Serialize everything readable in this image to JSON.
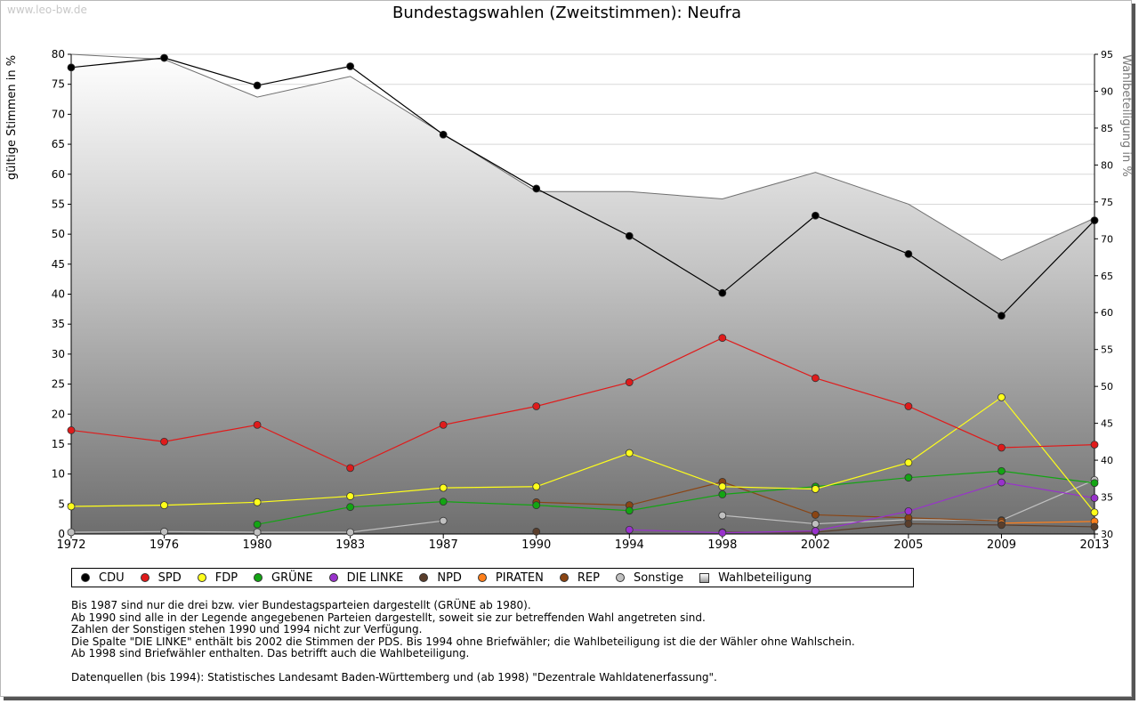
{
  "watermark": "www.leo-bw.de",
  "chart_data": {
    "type": "line",
    "title": "Bundestagswahlen (Zweitstimmen): Neufra",
    "ylabel": "gültige Stimmen in %",
    "y2label": "Wahlbeteiligung in %",
    "ylim": [
      0,
      80
    ],
    "y2lim": [
      30,
      95
    ],
    "yticks": [
      "0",
      "5",
      "10",
      "15",
      "20",
      "25",
      "30",
      "35",
      "40",
      "45",
      "50",
      "55",
      "60",
      "65",
      "70",
      "75",
      "80"
    ],
    "y2ticks": [
      "30",
      "35",
      "40",
      "45",
      "50",
      "55",
      "60",
      "65",
      "70",
      "75",
      "80",
      "85",
      "90",
      "95"
    ],
    "x": [
      "1972",
      "1976",
      "1980",
      "1983",
      "1987",
      "1990",
      "1994",
      "1998",
      "2002",
      "2005",
      "2009",
      "2013"
    ],
    "series": [
      {
        "name": "CDU",
        "color": "#000000",
        "values": [
          77.8,
          79.4,
          74.8,
          78.0,
          66.6,
          57.6,
          49.7,
          40.2,
          53.1,
          46.7,
          36.4,
          52.3
        ]
      },
      {
        "name": "SPD",
        "color": "#e01b1b",
        "values": [
          17.3,
          15.4,
          18.2,
          11.0,
          18.2,
          21.3,
          25.3,
          32.7,
          26.0,
          21.3,
          14.4,
          14.9
        ]
      },
      {
        "name": "FDP",
        "color": "#ffff1a",
        "values": [
          4.6,
          4.8,
          5.3,
          6.3,
          7.7,
          7.9,
          13.5,
          7.9,
          7.5,
          11.9,
          22.8,
          3.6
        ]
      },
      {
        "name": "GRÜNE",
        "color": "#13a513",
        "values": [
          null,
          null,
          1.6,
          4.5,
          5.4,
          4.8,
          3.9,
          6.6,
          7.9,
          9.4,
          10.5,
          8.5
        ]
      },
      {
        "name": "DIE LINKE",
        "color": "#9932cc",
        "values": [
          null,
          null,
          null,
          null,
          null,
          null,
          0.7,
          0.2,
          0.5,
          3.8,
          8.6,
          6.0
        ]
      },
      {
        "name": "NPD",
        "color": "#5a3e2b",
        "values": [
          null,
          null,
          null,
          null,
          null,
          0.4,
          null,
          0.3,
          0.3,
          1.7,
          1.5,
          1.2
        ]
      },
      {
        "name": "PIRATEN",
        "color": "#ff7f1a",
        "values": [
          null,
          null,
          null,
          null,
          null,
          null,
          null,
          null,
          null,
          null,
          1.8,
          2.1
        ]
      },
      {
        "name": "REP",
        "color": "#8b4513",
        "values": [
          null,
          null,
          null,
          null,
          null,
          5.3,
          4.8,
          8.7,
          3.2,
          2.7,
          2.2,
          null
        ]
      },
      {
        "name": "Sonstige",
        "color": "#c0c0c0",
        "values": [
          0.3,
          0.4,
          0.3,
          0.3,
          2.2,
          null,
          null,
          3.1,
          1.7,
          2.4,
          2.3,
          9.0
        ]
      }
    ],
    "turnout": {
      "name": "Wahlbeteiligung",
      "color": "#808080",
      "values": [
        95.0,
        94.3,
        89.2,
        92.0,
        84.2,
        76.4,
        76.4,
        75.4,
        79.0,
        74.7,
        67.1,
        72.8
      ]
    }
  },
  "legend": [
    {
      "label": "CDU",
      "color": "#000000"
    },
    {
      "label": "SPD",
      "color": "#e01b1b"
    },
    {
      "label": "FDP",
      "color": "#ffff1a"
    },
    {
      "label": "GRÜNE",
      "color": "#13a513"
    },
    {
      "label": "DIE LINKE",
      "color": "#9932cc"
    },
    {
      "label": "NPD",
      "color": "#5a3e2b"
    },
    {
      "label": "PIRATEN",
      "color": "#ff7f1a"
    },
    {
      "label": "REP",
      "color": "#8b4513"
    },
    {
      "label": "Sonstige",
      "color": "#c0c0c0"
    },
    {
      "label": "Wahlbeteiligung",
      "color": "#a0a0a0"
    }
  ],
  "notes": [
    "Bis 1987 sind nur die drei bzw. vier Bundestagsparteien dargestellt (GRÜNE ab 1980).",
    "Ab 1990 sind alle in der Legende angegebenen Parteien dargestellt, soweit sie zur betreffenden Wahl angetreten sind.",
    "Zahlen der Sonstigen stehen 1990 und 1994 nicht zur Verfügung.",
    "Die Spalte \"DIE LINKE\" enthält bis 2002 die Stimmen der PDS. Bis 1994 ohne Briefwähler; die Wahlbeteiligung ist die der Wähler ohne Wahlschein.",
    "Ab 1998 sind Briefwähler enthalten. Das betrifft auch die Wahlbeteiligung."
  ],
  "source": "Datenquellen (bis 1994): Statistisches Landesamt Baden-Württemberg und (ab 1998) \"Dezentrale Wahldatenerfassung\"."
}
